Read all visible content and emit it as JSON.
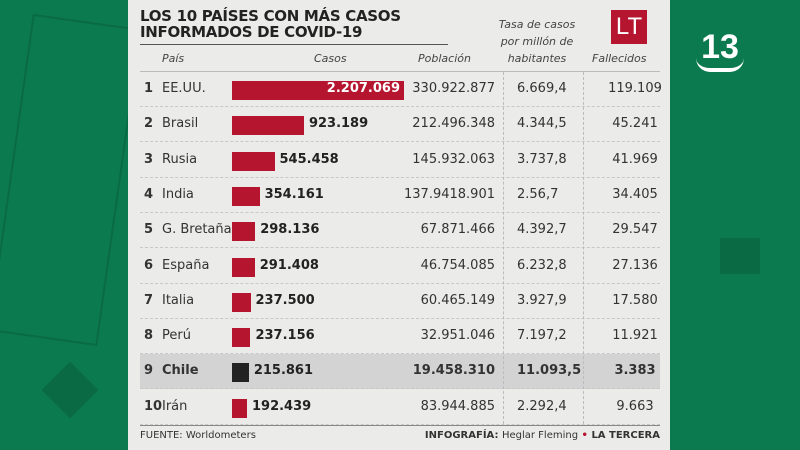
{
  "header": {
    "title_line1": "LOS 10 PAÍSES CON MÁS CASOS",
    "title_line2": "INFORMADOS DE COVID-19",
    "brand_logo": "LT",
    "channel_logo": "13"
  },
  "chart_data": {
    "type": "table",
    "title": "LOS 10 PAÍSES CON MÁS CASOS INFORMADOS DE COVID-19",
    "columns": [
      "País",
      "Casos",
      "Población",
      "Tasa de casos por millón de habitantes",
      "Fallecidos"
    ],
    "rows": [
      {
        "rank": "1",
        "country": "EE.UU.",
        "cases": 2207069,
        "cases_label": "2.207.069",
        "population": "330.922.877",
        "rate": "6.669,4",
        "deaths": "119.109"
      },
      {
        "rank": "2",
        "country": "Brasil",
        "cases": 923189,
        "cases_label": "923.189",
        "population": "212.496.348",
        "rate": "4.344,5",
        "deaths": "45.241"
      },
      {
        "rank": "3",
        "country": "Rusia",
        "cases": 545458,
        "cases_label": "545.458",
        "population": "145.932.063",
        "rate": "3.737,8",
        "deaths": "41.969"
      },
      {
        "rank": "4",
        "country": "India",
        "cases": 354161,
        "cases_label": "354.161",
        "population": "137.9418.901",
        "rate": "2.56,7",
        "deaths": "34.405"
      },
      {
        "rank": "5",
        "country": "G. Bretaña",
        "cases": 298136,
        "cases_label": "298.136",
        "population": "67.871.466",
        "rate": "4.392,7",
        "deaths": "29.547"
      },
      {
        "rank": "6",
        "country": "España",
        "cases": 291408,
        "cases_label": "291.408",
        "population": "46.754.085",
        "rate": "6.232,8",
        "deaths": "27.136"
      },
      {
        "rank": "7",
        "country": "Italia",
        "cases": 237500,
        "cases_label": "237.500",
        "population": "60.465.149",
        "rate": "3.927,9",
        "deaths": "17.580"
      },
      {
        "rank": "8",
        "country": "Perú",
        "cases": 237156,
        "cases_label": "237.156",
        "population": "32.951.046",
        "rate": "7.197,2",
        "deaths": "11.921"
      },
      {
        "rank": "9",
        "country": "Chile",
        "cases": 215861,
        "cases_label": "215.861",
        "population": "19.458.310",
        "rate": "11.093,5",
        "deaths": "3.383",
        "highlight": true
      },
      {
        "rank": "10",
        "country": "Irán",
        "cases": 192439,
        "cases_label": "192.439",
        "population": "83.944.885",
        "rate": "2.292,4",
        "deaths": "9.663"
      }
    ],
    "colors": {
      "bar": "#b5152f",
      "highlight_bar": "#222222",
      "highlight_row": "#d3d3d3"
    }
  },
  "footer": {
    "source": "FUENTE: Worldometers",
    "credit_label": "INFOGRAFÍA:",
    "credit_name": "Heglar Fleming",
    "credit_sep": "•",
    "credit_outlet": "LA TERCERA"
  }
}
